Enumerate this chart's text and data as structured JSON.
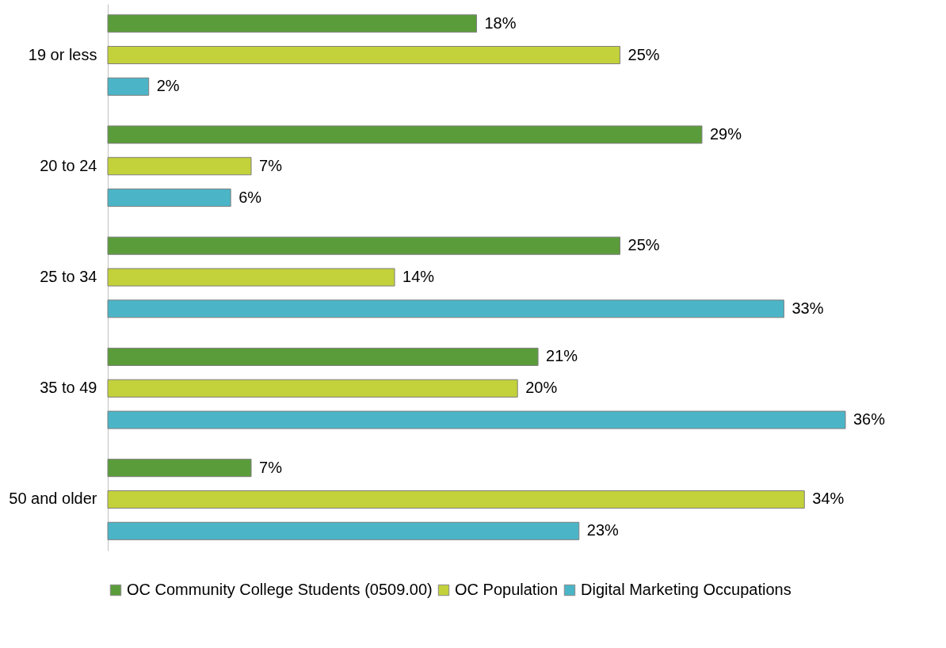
{
  "chart_data": {
    "type": "bar",
    "orientation": "horizontal",
    "categories": [
      "19 or less",
      "20 to 24",
      "25 to 34",
      "35 to 49",
      "50 and older"
    ],
    "series": [
      {
        "name": "OC Community College Students (0509.00)",
        "color": "#5b9c3a",
        "values": [
          18,
          29,
          25,
          21,
          7
        ],
        "value_labels": [
          "18%",
          "29%",
          "25%",
          "21%",
          "7%"
        ]
      },
      {
        "name": "OC Population",
        "color": "#c3d13a",
        "values": [
          25,
          7,
          14,
          20,
          34
        ],
        "value_labels": [
          "25%",
          "7%",
          "14%",
          "20%",
          "34%"
        ]
      },
      {
        "name": "Digital Marketing Occupations",
        "color": "#4bb5c7",
        "values": [
          2,
          6,
          33,
          36,
          23
        ],
        "value_labels": [
          "2%",
          "6%",
          "33%",
          "36%",
          "23%"
        ]
      }
    ],
    "legend": "bottom",
    "tick_labels": "y"
  }
}
